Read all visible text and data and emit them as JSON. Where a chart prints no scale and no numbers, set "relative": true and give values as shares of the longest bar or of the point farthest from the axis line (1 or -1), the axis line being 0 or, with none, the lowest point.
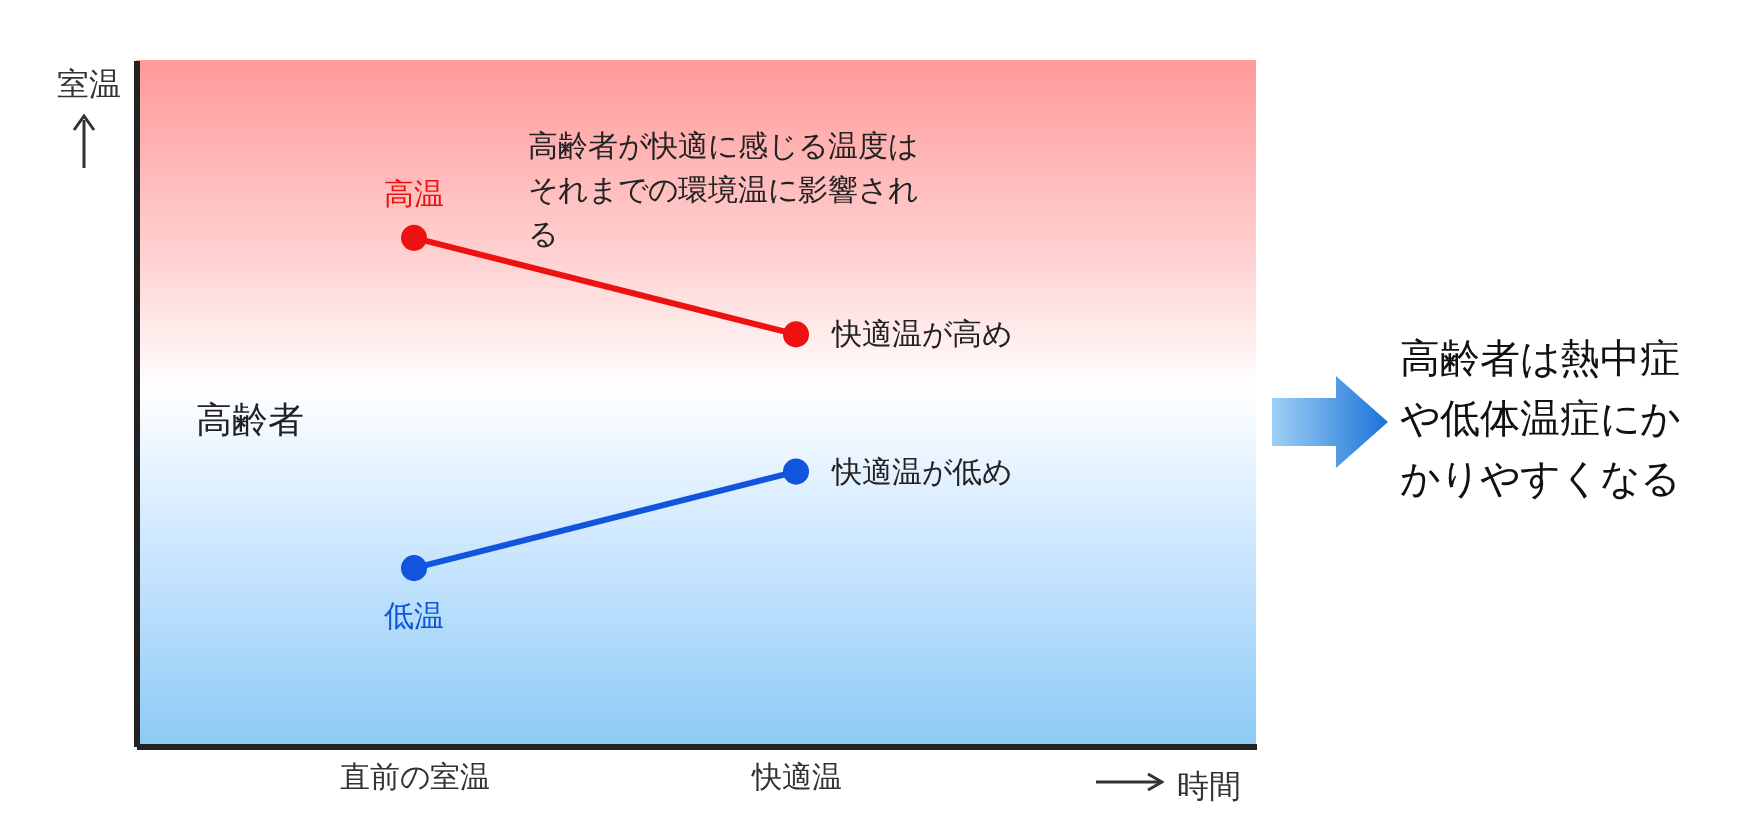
{
  "chart_data": {
    "type": "line",
    "relative": true,
    "xlabel": "時間",
    "ylabel": "室温",
    "categories": [
      "直前の室温",
      "快適温"
    ],
    "series": [
      {
        "name": "高温",
        "color": "#ee1111",
        "values": [
          1,
          0.81
        ]
      },
      {
        "name": "低温",
        "color": "#1155dd",
        "values": [
          0.35,
          0.54
        ]
      }
    ],
    "marker": "circle",
    "annotations": [
      "高齢者が快適に感じる温度はそれまでの環境温に影響される",
      "高齢者",
      {
        "text": "快適温が高め",
        "x": "快適温",
        "y": 0.81
      },
      {
        "text": "快適温が低め",
        "x": "快適温",
        "y": 0.54
      },
      "高齢者は熱中症や低体温症にかかりやすくなる"
    ]
  }
}
